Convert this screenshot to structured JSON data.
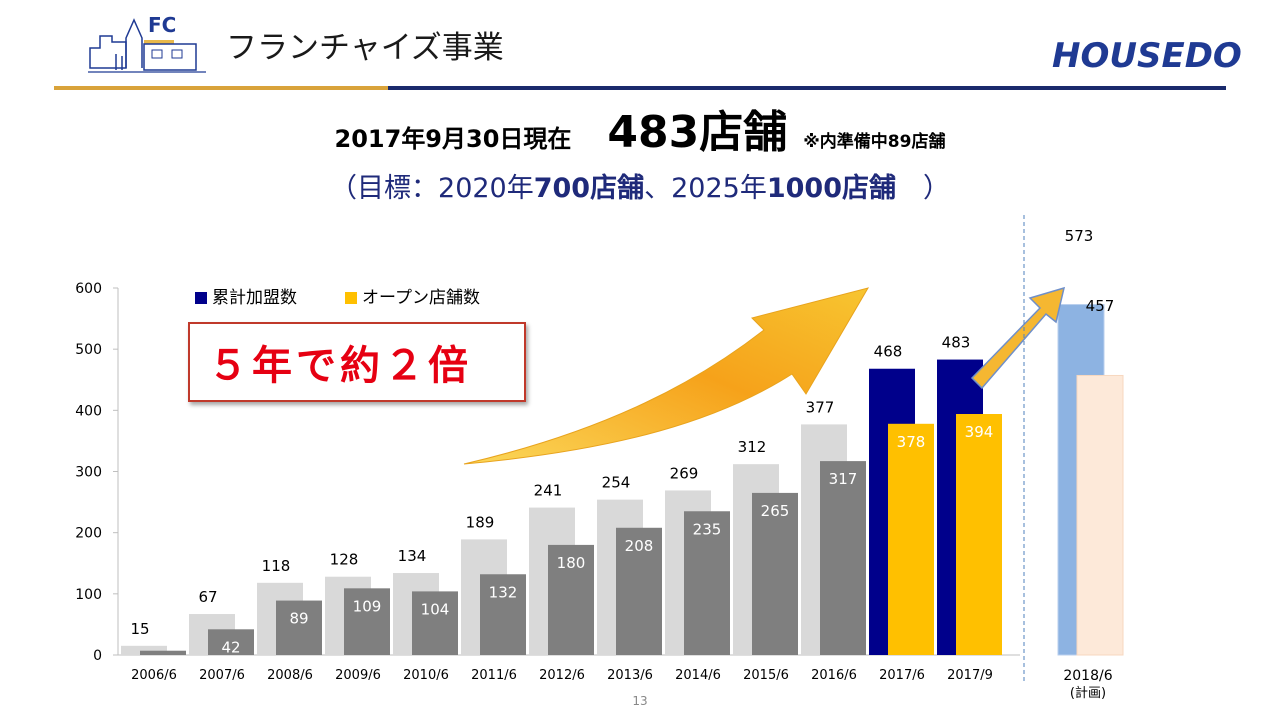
{
  "header": {
    "logo_text": "FC",
    "title": "フランチャイズ事業",
    "brand_part1": "HOUSE",
    "brand_part2": "DO",
    "brand_display1": "HOUSE",
    "brand_display2": "DO"
  },
  "headline": {
    "date": "2017年9月30日現在",
    "count": "483店舗",
    "note": "※内準備中89店舗"
  },
  "subline": {
    "open": "（目標：2020年",
    "target1": "700店舗",
    "mid": "、2025年",
    "target2": "1000店舗",
    "close": "　）"
  },
  "callout": "５年で約２倍",
  "page_number": "13",
  "colors": {
    "navy": "#00008b",
    "gold": "#ffc000",
    "light_gray": "#d9d9d9",
    "dark_gray": "#7f7f7f",
    "plan_blue": "#8db3e2",
    "plan_peach": "#fde9d9",
    "accent_red": "#e60012"
  },
  "chart_data": {
    "type": "bar",
    "ylim": [
      0,
      600
    ],
    "yticks": [
      0,
      100,
      200,
      300,
      400,
      500,
      600
    ],
    "categories": [
      "2006/6",
      "2007/6",
      "2008/6",
      "2009/6",
      "2010/6",
      "2011/6",
      "2012/6",
      "2013/6",
      "2014/6",
      "2015/6",
      "2016/6",
      "2017/6",
      "2017/9"
    ],
    "legend_position": "top-left",
    "series": [
      {
        "name": "累計加盟数",
        "values": [
          15,
          67,
          118,
          128,
          134,
          189,
          241,
          254,
          269,
          312,
          377,
          468,
          483
        ]
      },
      {
        "name": "オープン店舗数",
        "values": [
          7,
          42,
          89,
          109,
          104,
          132,
          180,
          208,
          235,
          265,
          317,
          378,
          394
        ]
      }
    ],
    "plan": {
      "category": "2018/6",
      "sub_label": "(計画)",
      "values": [
        573,
        457
      ]
    }
  }
}
